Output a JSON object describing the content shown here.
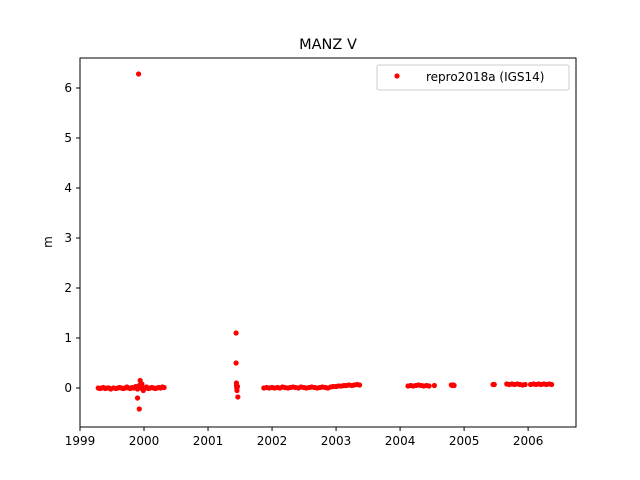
{
  "chart_data": {
    "type": "scatter",
    "title": "MANZ V",
    "xlabel": "",
    "ylabel": "m",
    "x_is_date_axis": true,
    "xlim": [
      "1999-01-01",
      "2006-10-01"
    ],
    "ylim": [
      -0.78,
      6.6
    ],
    "x_ticks": [
      "1999",
      "2000",
      "2001",
      "2002",
      "2003",
      "2004",
      "2005",
      "2006"
    ],
    "y_ticks": [
      "0",
      "1",
      "2",
      "3",
      "4",
      "5",
      "6"
    ],
    "grid": false,
    "legend_position": "top-right",
    "marker_color": "#ff0000",
    "series": [
      {
        "name": "repro2018a (IGS14)",
        "color": "#ff0000",
        "points": [
          [
            "1999-04-15",
            0.0
          ],
          [
            "1999-04-25",
            -0.01
          ],
          [
            "1999-05-05",
            0.0
          ],
          [
            "1999-05-15",
            0.01
          ],
          [
            "1999-05-25",
            -0.01
          ],
          [
            "1999-06-05",
            0.0
          ],
          [
            "1999-06-15",
            0.0
          ],
          [
            "1999-06-25",
            -0.02
          ],
          [
            "1999-07-10",
            0.0
          ],
          [
            "1999-07-25",
            -0.01
          ],
          [
            "1999-08-05",
            0.0
          ],
          [
            "1999-08-15",
            0.01
          ],
          [
            "1999-08-25",
            0.0
          ],
          [
            "1999-09-05",
            -0.01
          ],
          [
            "1999-09-15",
            0.0
          ],
          [
            "1999-09-25",
            0.02
          ],
          [
            "1999-10-05",
            0.0
          ],
          [
            "1999-10-15",
            -0.01
          ],
          [
            "1999-10-25",
            0.01
          ],
          [
            "1999-11-05",
            0.0
          ],
          [
            "1999-11-15",
            0.03
          ],
          [
            "1999-11-25",
            -0.02
          ],
          [
            "1999-12-05",
            0.05
          ],
          [
            "1999-12-15",
            0.0
          ],
          [
            "1999-12-01",
            6.28
          ],
          [
            "1999-11-25",
            -0.2
          ],
          [
            "1999-12-05",
            -0.42
          ],
          [
            "1999-12-10",
            0.15
          ],
          [
            "1999-12-20",
            0.08
          ],
          [
            "1999-12-28",
            -0.05
          ],
          [
            "2000-01-05",
            0.0
          ],
          [
            "2000-01-15",
            0.02
          ],
          [
            "2000-01-25",
            -0.01
          ],
          [
            "2000-02-05",
            0.0
          ],
          [
            "2000-02-15",
            0.01
          ],
          [
            "2000-02-25",
            0.0
          ],
          [
            "2000-03-05",
            -0.01
          ],
          [
            "2000-03-15",
            0.0
          ],
          [
            "2000-03-25",
            0.01
          ],
          [
            "2000-04-05",
            0.0
          ],
          [
            "2000-04-15",
            0.02
          ],
          [
            "2000-04-25",
            0.01
          ],
          [
            "2001-06-10",
            1.1
          ],
          [
            "2001-06-10",
            0.5
          ],
          [
            "2001-06-12",
            0.1
          ],
          [
            "2001-06-12",
            0.05
          ],
          [
            "2001-06-14",
            0.0
          ],
          [
            "2001-06-15",
            -0.05
          ],
          [
            "2001-06-20",
            -0.18
          ],
          [
            "2001-06-18",
            0.03
          ],
          [
            "2001-11-15",
            0.0
          ],
          [
            "2001-12-01",
            0.01
          ],
          [
            "2001-12-15",
            0.0
          ],
          [
            "2002-01-01",
            0.01
          ],
          [
            "2002-01-15",
            0.0
          ],
          [
            "2002-02-01",
            0.01
          ],
          [
            "2002-02-15",
            0.0
          ],
          [
            "2002-03-01",
            0.02
          ],
          [
            "2002-03-15",
            0.01
          ],
          [
            "2002-04-01",
            0.0
          ],
          [
            "2002-04-15",
            0.01
          ],
          [
            "2002-05-01",
            0.02
          ],
          [
            "2002-05-15",
            0.01
          ],
          [
            "2002-06-01",
            0.0
          ],
          [
            "2002-06-15",
            0.02
          ],
          [
            "2002-07-01",
            0.01
          ],
          [
            "2002-07-15",
            0.0
          ],
          [
            "2002-08-01",
            0.01
          ],
          [
            "2002-08-15",
            0.02
          ],
          [
            "2002-09-01",
            0.01
          ],
          [
            "2002-09-15",
            0.0
          ],
          [
            "2002-10-01",
            0.01
          ],
          [
            "2002-10-15",
            0.02
          ],
          [
            "2002-11-01",
            0.01
          ],
          [
            "2002-11-15",
            0.0
          ],
          [
            "2002-12-01",
            0.02
          ],
          [
            "2002-12-15",
            0.03
          ],
          [
            "2003-01-01",
            0.03
          ],
          [
            "2003-01-15",
            0.04
          ],
          [
            "2003-02-01",
            0.04
          ],
          [
            "2003-02-15",
            0.05
          ],
          [
            "2003-03-01",
            0.05
          ],
          [
            "2003-03-15",
            0.06
          ],
          [
            "2003-04-01",
            0.05
          ],
          [
            "2003-04-15",
            0.06
          ],
          [
            "2003-05-01",
            0.07
          ],
          [
            "2003-05-15",
            0.06
          ],
          [
            "2004-02-15",
            0.04
          ],
          [
            "2004-03-01",
            0.05
          ],
          [
            "2004-03-15",
            0.04
          ],
          [
            "2004-04-01",
            0.05
          ],
          [
            "2004-04-15",
            0.06
          ],
          [
            "2004-05-01",
            0.05
          ],
          [
            "2004-05-15",
            0.04
          ],
          [
            "2004-06-01",
            0.05
          ],
          [
            "2004-06-15",
            0.04
          ],
          [
            "2004-07-15",
            0.05
          ],
          [
            "2004-10-20",
            0.06
          ],
          [
            "2004-10-25",
            0.05
          ],
          [
            "2004-11-01",
            0.06
          ],
          [
            "2004-11-05",
            0.05
          ],
          [
            "2005-06-15",
            0.07
          ],
          [
            "2005-06-22",
            0.07
          ],
          [
            "2005-09-01",
            0.08
          ],
          [
            "2005-09-15",
            0.07
          ],
          [
            "2005-10-01",
            0.08
          ],
          [
            "2005-10-15",
            0.07
          ],
          [
            "2005-11-01",
            0.08
          ],
          [
            "2005-11-15",
            0.07
          ],
          [
            "2005-12-01",
            0.06
          ],
          [
            "2005-12-15",
            0.07
          ],
          [
            "2006-01-15",
            0.07
          ],
          [
            "2006-02-01",
            0.08
          ],
          [
            "2006-02-15",
            0.07
          ],
          [
            "2006-03-01",
            0.08
          ],
          [
            "2006-03-15",
            0.07
          ],
          [
            "2006-04-01",
            0.08
          ],
          [
            "2006-04-15",
            0.07
          ],
          [
            "2006-05-01",
            0.08
          ],
          [
            "2006-05-15",
            0.07
          ]
        ]
      }
    ]
  }
}
